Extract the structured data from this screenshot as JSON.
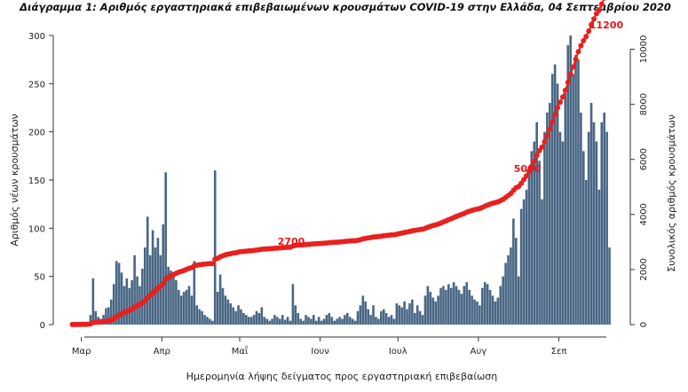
{
  "chart_data": {
    "type": "bar+line",
    "title": "Διάγραμμα 1: Αριθμός εργαστηριακά επιβεβαιωμένων κρουσμάτων COVID-19 στην Ελλάδα, 04 Σεπτεμβρίου 2020",
    "xlabel": "Ημερομηνία λήψης δείγματος προς εργαστηριακή επιβεβαίωση",
    "ylabel_left": "Αριθμός νέων κρουσμάτων",
    "ylabel_right": "Συνολικός αριθμός κρουσμάτων",
    "x_ticks": [
      "Μαρ",
      "Απρ",
      "Μαΐ",
      "Ιουν",
      "Ιουλ",
      "Αυγ",
      "Σεπ"
    ],
    "y_left_ticks": [
      "0",
      "50",
      "100",
      "150",
      "200",
      "250",
      "300"
    ],
    "y_right_ticks": [
      "0",
      "2000",
      "4000",
      "6000",
      "8000",
      "10000"
    ],
    "ylim_left": [
      0,
      300
    ],
    "ylim_right": [
      0,
      10500
    ],
    "bar_color": "#4a6785",
    "line_color": "#e8201e",
    "start_date": "2020-02-26",
    "daily_cases": [
      2,
      1,
      1,
      2,
      3,
      2,
      2,
      10,
      48,
      14,
      8,
      6,
      10,
      17,
      18,
      26,
      42,
      66,
      64,
      54,
      40,
      48,
      38,
      46,
      72,
      50,
      40,
      58,
      80,
      112,
      72,
      98,
      80,
      90,
      72,
      104,
      158,
      60,
      56,
      50,
      46,
      36,
      30,
      34,
      36,
      40,
      30,
      66,
      20,
      16,
      14,
      10,
      8,
      6,
      4,
      160,
      34,
      52,
      38,
      30,
      26,
      22,
      18,
      14,
      20,
      16,
      12,
      10,
      8,
      8,
      10,
      14,
      12,
      18,
      8,
      6,
      4,
      6,
      10,
      8,
      6,
      10,
      5,
      8,
      4,
      42,
      20,
      12,
      6,
      4,
      10,
      8,
      6,
      10,
      4,
      8,
      4,
      6,
      10,
      12,
      8,
      4,
      6,
      8,
      6,
      10,
      12,
      8,
      6,
      4,
      14,
      20,
      30,
      24,
      16,
      10,
      20,
      8,
      6,
      14,
      16,
      12,
      8,
      10,
      6,
      22,
      20,
      18,
      24,
      16,
      22,
      26,
      12,
      20,
      14,
      10,
      30,
      40,
      34,
      28,
      24,
      30,
      38,
      40,
      36,
      42,
      38,
      44,
      40,
      36,
      32,
      40,
      44,
      36,
      30,
      26,
      24,
      20,
      38,
      44,
      42,
      36,
      30,
      24,
      28,
      40,
      50,
      64,
      72,
      80,
      110,
      90,
      50,
      120,
      130,
      140,
      160,
      180,
      190,
      210,
      170,
      130,
      200,
      220,
      230,
      260,
      270,
      250,
      200,
      190,
      240,
      290,
      300,
      260,
      280,
      275,
      220,
      180,
      150,
      200,
      230,
      210,
      190,
      140,
      210,
      220,
      200,
      80
    ]
  },
  "annotations": {
    "total_label": "11200",
    "mid_label_1": "2700",
    "mid_label_2": "5000"
  }
}
